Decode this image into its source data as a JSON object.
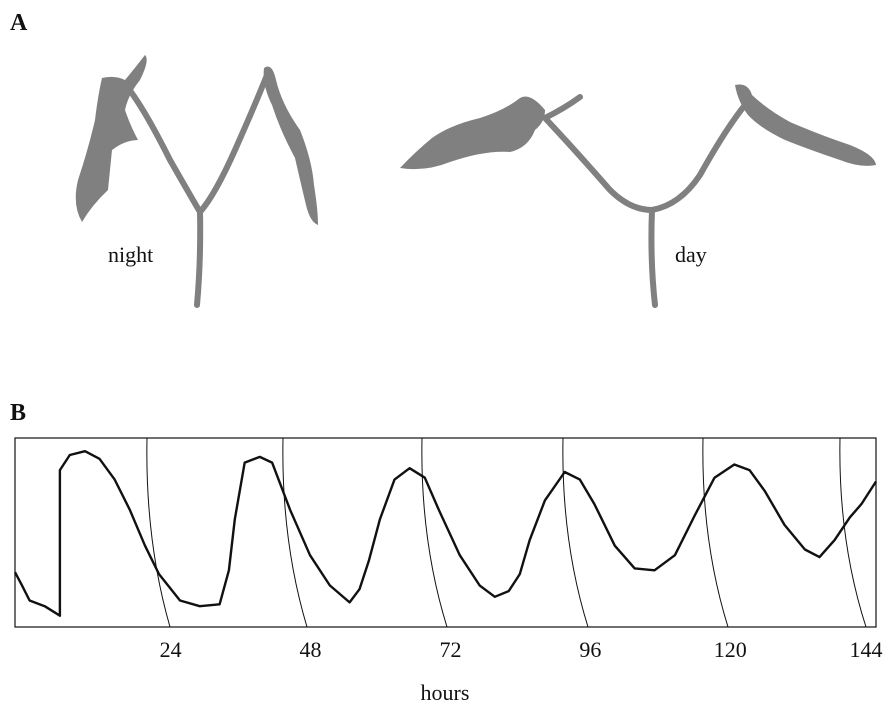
{
  "panels": {
    "a": {
      "label": "A",
      "night": "night",
      "day": "day"
    },
    "b": {
      "label": "B"
    }
  },
  "chart_data": {
    "type": "line",
    "x_label": "hours",
    "xlim": [
      -2.7,
      145
    ],
    "ylim": [
      0,
      100
    ],
    "xticks": [
      24,
      48,
      72,
      96,
      120,
      144
    ],
    "x": [
      -2.7,
      -1.5,
      -0.2,
      2.4,
      5,
      5,
      6.7,
      9.3,
      11.8,
      14.4,
      17,
      19.6,
      22,
      25.6,
      29,
      32.4,
      34,
      35,
      36.7,
      39.3,
      41.4,
      44.5,
      47.9,
      51.3,
      54.7,
      56.4,
      58,
      59.9,
      62.4,
      65,
      67.6,
      70,
      73.6,
      77,
      79.6,
      82,
      83.9,
      85.6,
      88.2,
      91.6,
      94.2,
      96.7,
      100.2,
      103.6,
      107,
      110.5,
      113.9,
      117.3,
      120.7,
      123.3,
      125.9,
      129.3,
      132.8,
      135.3,
      137.9,
      140.5,
      142.5,
      145
    ],
    "series": [
      {
        "color": "#111111",
        "values": [
          29,
          22,
          14,
          11,
          6,
          83,
          91,
          93,
          89,
          78,
          62,
          43,
          28,
          14,
          11,
          12,
          30,
          57,
          87,
          90,
          87,
          62,
          38,
          22,
          13,
          20,
          35,
          57,
          78,
          84,
          79,
          62,
          38,
          22,
          16,
          19,
          28,
          46,
          67,
          82,
          78,
          65,
          43,
          31,
          30,
          38,
          59,
          79,
          86,
          83,
          72,
          54,
          41,
          37,
          46,
          58,
          65,
          77
        ]
      }
    ]
  }
}
